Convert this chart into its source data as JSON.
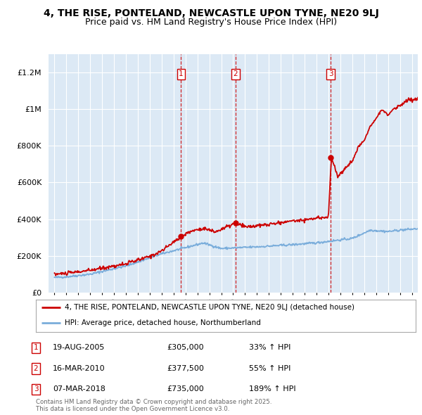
{
  "title": "4, THE RISE, PONTELAND, NEWCASTLE UPON TYNE, NE20 9LJ",
  "subtitle": "Price paid vs. HM Land Registry's House Price Index (HPI)",
  "title_fontsize": 10.5,
  "subtitle_fontsize": 9.5,
  "background_color": "#ffffff",
  "plot_bg_color": "#dce9f5",
  "grid_color": "#ffffff",
  "transactions": [
    {
      "num": 1,
      "date": "19-AUG-2005",
      "price": 305000,
      "hpi_pct": "33% ↑ HPI",
      "year": 2005.63
    },
    {
      "num": 2,
      "date": "16-MAR-2010",
      "price": 377500,
      "hpi_pct": "55% ↑ HPI",
      "year": 2010.21
    },
    {
      "num": 3,
      "date": "07-MAR-2018",
      "price": 735000,
      "hpi_pct": "189% ↑ HPI",
      "year": 2018.18
    }
  ],
  "legend_line1": "4, THE RISE, PONTELAND, NEWCASTLE UPON TYNE, NE20 9LJ (detached house)",
  "legend_line2": "HPI: Average price, detached house, Northumberland",
  "footnote": "Contains HM Land Registry data © Crown copyright and database right 2025.\nThis data is licensed under the Open Government Licence v3.0.",
  "ylim": [
    0,
    1300000
  ],
  "xlim_start": 1994.5,
  "xlim_end": 2025.5,
  "red_color": "#cc0000",
  "blue_color": "#7aaddb",
  "marker_box_color": "#cc0000"
}
